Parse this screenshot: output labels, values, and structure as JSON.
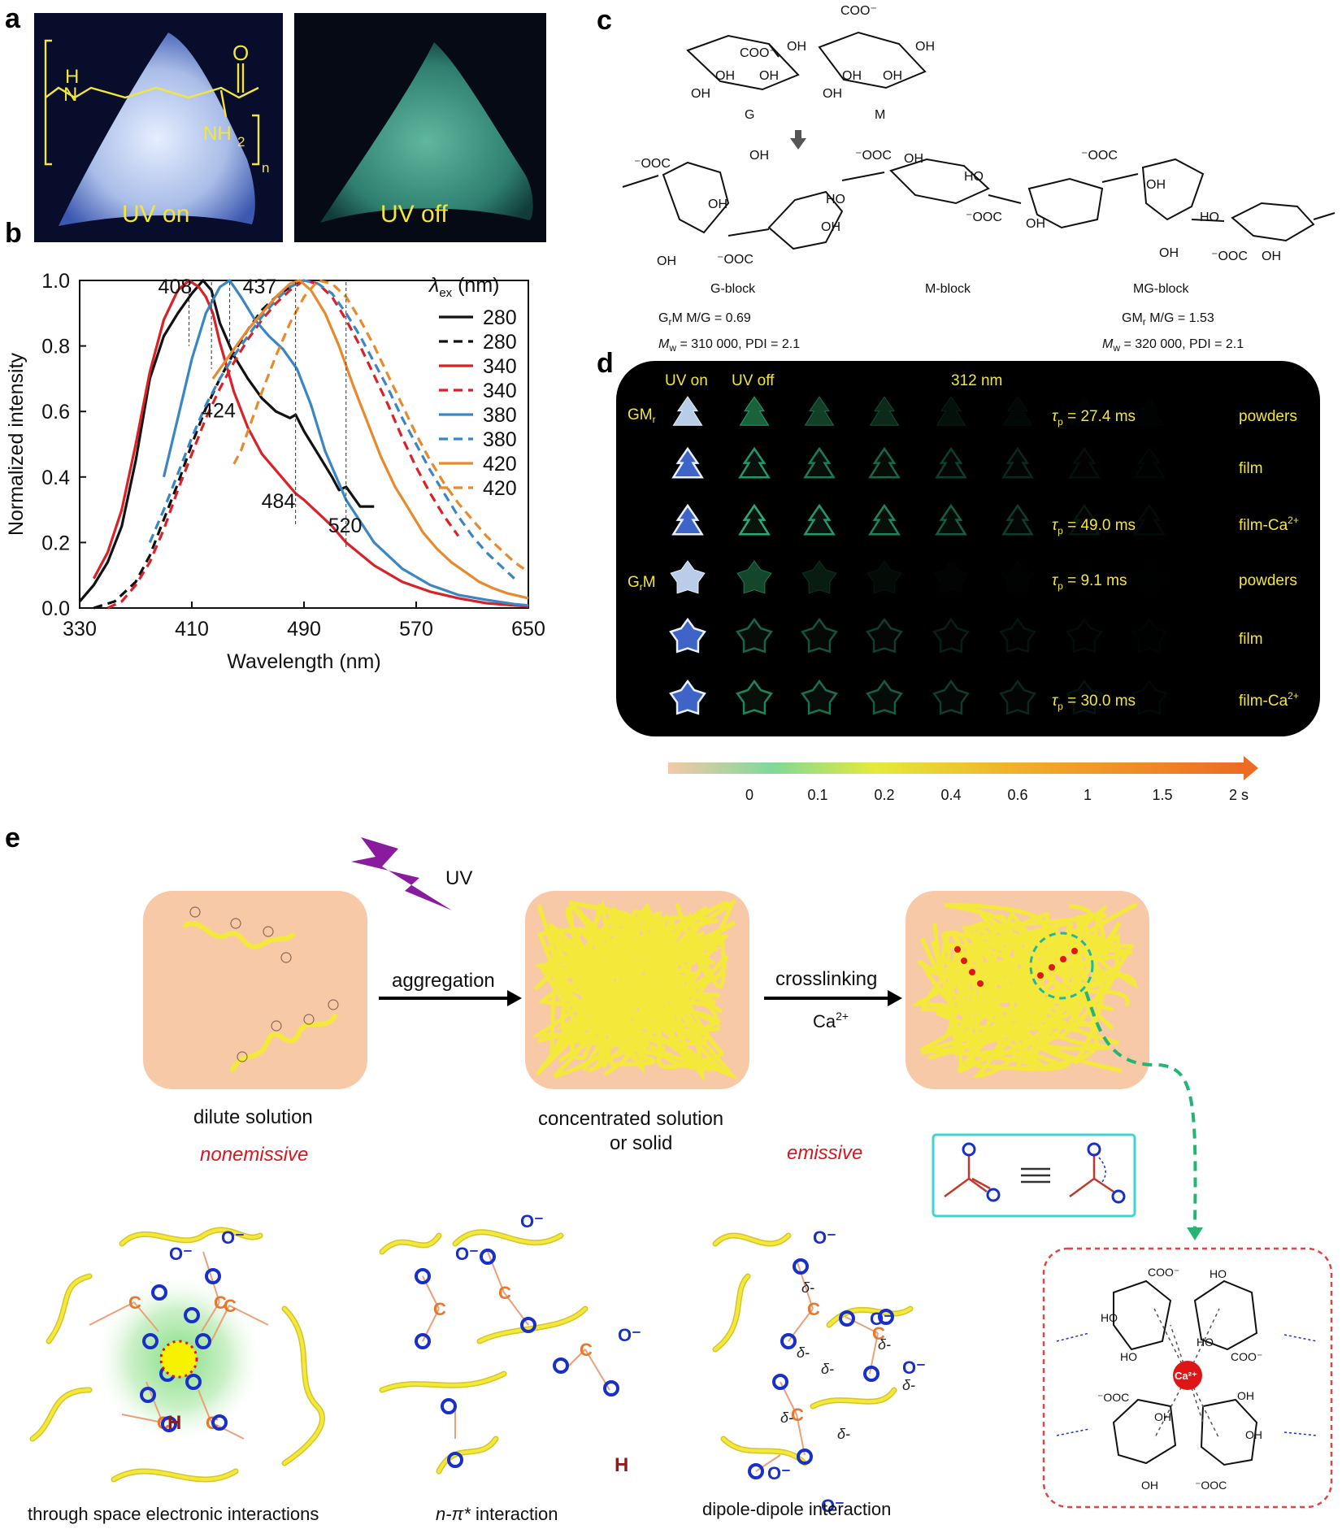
{
  "panels": {
    "a": "a",
    "b": "b",
    "c": "c",
    "d": "d",
    "e": "e"
  },
  "panel_a": {
    "uv_on": "UV on",
    "uv_off": "UV off",
    "struct_h": "H",
    "struct_n": "N",
    "struct_o": "O",
    "struct_nh2": "NH",
    "struct_sub2": "2",
    "struct_n_sub": "n"
  },
  "chart_data": {
    "type": "line",
    "xlabel": "Wavelength (nm)",
    "ylabel": "Normalized intensity",
    "xlim": [
      330,
      650
    ],
    "ylim": [
      0,
      1.0
    ],
    "xticks": [
      330,
      410,
      490,
      570,
      650
    ],
    "yticks": [
      0.0,
      0.2,
      0.4,
      0.6,
      0.8,
      1.0
    ],
    "ytick_labels": [
      "0.0",
      "0.2",
      "0.4",
      "0.6",
      "0.8",
      "1.0"
    ],
    "legend_title": "λex (nm)",
    "legend_title_main": "λ",
    "legend_title_sub": "ex",
    "legend_title_unit": " (nm)",
    "peak_labels": [
      {
        "text": "408",
        "x": 408,
        "y": 1.0
      },
      {
        "text": "424",
        "x": 424,
        "y": 0.83
      },
      {
        "text": "437",
        "x": 437,
        "y": 1.0
      },
      {
        "text": "484",
        "x": 484,
        "y": 0.35
      },
      {
        "text": "520",
        "x": 520,
        "y": 0.28
      }
    ],
    "series": [
      {
        "name": "280",
        "style": "solid",
        "color": "#111111",
        "x": [
          330,
          340,
          350,
          360,
          370,
          380,
          390,
          400,
          410,
          418,
          424,
          430,
          440,
          450,
          460,
          470,
          480,
          484,
          490,
          500,
          510,
          515,
          520,
          525,
          530,
          540
        ],
        "y": [
          0.02,
          0.07,
          0.14,
          0.25,
          0.45,
          0.7,
          0.83,
          0.9,
          0.96,
          1.0,
          0.97,
          0.87,
          0.77,
          0.7,
          0.64,
          0.6,
          0.58,
          0.59,
          0.54,
          0.47,
          0.4,
          0.36,
          0.37,
          0.34,
          0.31,
          0.31
        ]
      },
      {
        "name": "280",
        "style": "dashed",
        "color": "#111111",
        "x": [
          340,
          355,
          370,
          380,
          390,
          400,
          410,
          420,
          430,
          440,
          450,
          460,
          470,
          480,
          490
        ],
        "y": [
          0.0,
          0.02,
          0.08,
          0.16,
          0.27,
          0.38,
          0.5,
          0.61,
          0.7,
          0.78,
          0.85,
          0.91,
          0.95,
          0.98,
          1.0
        ]
      },
      {
        "name": "340",
        "style": "solid",
        "color": "#d92127",
        "x": [
          340,
          350,
          360,
          370,
          380,
          390,
          400,
          408,
          415,
          420,
          425,
          430,
          440,
          450,
          460,
          470,
          480,
          484,
          490,
          500,
          510,
          520,
          540,
          560,
          580,
          600,
          620,
          640,
          650
        ],
        "y": [
          0.09,
          0.17,
          0.3,
          0.5,
          0.72,
          0.88,
          0.97,
          1.0,
          0.98,
          0.95,
          0.9,
          0.81,
          0.66,
          0.55,
          0.47,
          0.42,
          0.37,
          0.35,
          0.33,
          0.29,
          0.25,
          0.2,
          0.13,
          0.08,
          0.05,
          0.03,
          0.015,
          0.008,
          0.005
        ]
      },
      {
        "name": "340",
        "style": "dashed",
        "color": "#d92127",
        "x": [
          350,
          360,
          370,
          380,
          390,
          400,
          410,
          420,
          430,
          440,
          450,
          460,
          470,
          480,
          490,
          500,
          510,
          520,
          530,
          540,
          550,
          560,
          570,
          580,
          590,
          600
        ],
        "y": [
          0.0,
          0.02,
          0.07,
          0.14,
          0.24,
          0.36,
          0.47,
          0.58,
          0.67,
          0.75,
          0.82,
          0.88,
          0.93,
          0.97,
          1.0,
          0.99,
          0.95,
          0.88,
          0.8,
          0.71,
          0.62,
          0.52,
          0.43,
          0.35,
          0.28,
          0.22
        ]
      },
      {
        "name": "380",
        "style": "solid",
        "color": "#3a86c4",
        "x": [
          390,
          400,
          410,
          420,
          430,
          437,
          445,
          455,
          465,
          475,
          485,
          495,
          505,
          520,
          540,
          560,
          580,
          600,
          620,
          640,
          650
        ],
        "y": [
          0.4,
          0.58,
          0.76,
          0.9,
          0.98,
          1.0,
          0.95,
          0.88,
          0.83,
          0.79,
          0.73,
          0.62,
          0.48,
          0.33,
          0.2,
          0.12,
          0.07,
          0.04,
          0.025,
          0.012,
          0.008
        ]
      },
      {
        "name": "380",
        "style": "dashed",
        "color": "#3a86c4",
        "x": [
          380,
          390,
          400,
          410,
          420,
          430,
          440,
          450,
          460,
          470,
          480,
          490,
          500,
          510,
          520,
          530,
          540,
          550,
          560,
          570,
          580,
          590,
          600,
          610,
          620,
          630,
          640
        ],
        "y": [
          0.2,
          0.3,
          0.41,
          0.52,
          0.62,
          0.7,
          0.77,
          0.83,
          0.89,
          0.94,
          0.98,
          1.0,
          0.99,
          0.96,
          0.9,
          0.83,
          0.75,
          0.67,
          0.58,
          0.5,
          0.42,
          0.35,
          0.28,
          0.22,
          0.17,
          0.13,
          0.09
        ]
      },
      {
        "name": "420",
        "style": "solid",
        "color": "#e8892c",
        "x": [
          425,
          430,
          440,
          450,
          460,
          470,
          480,
          487,
          495,
          505,
          515,
          525,
          535,
          545,
          555,
          565,
          575,
          585,
          595,
          605,
          615,
          625,
          635,
          645,
          650
        ],
        "y": [
          0.7,
          0.73,
          0.79,
          0.85,
          0.9,
          0.95,
          0.99,
          1.0,
          0.97,
          0.9,
          0.8,
          0.68,
          0.57,
          0.46,
          0.37,
          0.3,
          0.23,
          0.18,
          0.14,
          0.11,
          0.08,
          0.06,
          0.045,
          0.035,
          0.03
        ]
      },
      {
        "name": "420",
        "style": "dashed",
        "color": "#e8892c",
        "x": [
          440,
          445,
          450,
          460,
          470,
          480,
          490,
          500,
          510,
          520,
          530,
          540,
          550,
          560,
          570,
          580,
          590,
          600,
          610,
          620,
          630,
          640,
          650
        ],
        "y": [
          0.44,
          0.48,
          0.54,
          0.66,
          0.77,
          0.87,
          0.95,
          1.0,
          0.99,
          0.95,
          0.88,
          0.8,
          0.71,
          0.62,
          0.53,
          0.45,
          0.38,
          0.32,
          0.27,
          0.22,
          0.18,
          0.14,
          0.11
        ]
      }
    ]
  },
  "panel_c": {
    "labels": [
      "G",
      "M"
    ],
    "coo": "COO⁻",
    "oh": "OH",
    "g_block": "G-block",
    "m_block": "M-block",
    "mg_block": "MG-block",
    "left_info_1a": "G",
    "left_info_1b": "r",
    "left_info_1c": "M   M/G = 0.69",
    "left_info_2a": "M",
    "left_info_2b": "w",
    "left_info_2c": " = 310 000, PDI = 2.1",
    "right_info_1a": "GM",
    "right_info_1b": "r",
    "right_info_1c": "   M/G = 1.53",
    "right_info_2a": "M",
    "right_info_2b": "w",
    "right_info_2c": " = 320 000, PDI = 2.1"
  },
  "panel_d": {
    "col_uv_on": "UV on",
    "col_uv_off": "UV off",
    "col_312": "312 nm",
    "gm_label_a": "GM",
    "gm_label_b": "r",
    "grm_label_a": "G",
    "grm_label_b": "r",
    "grm_label_c": "M",
    "rows": [
      {
        "tau_a": "τ",
        "tau_b": "p",
        "tau_c": " = 27.4 ms",
        "form": "powders",
        "ca": ""
      },
      {
        "tau_a": "",
        "tau_b": "",
        "tau_c": "",
        "form": "film",
        "ca": ""
      },
      {
        "tau_a": "τ",
        "tau_b": "p",
        "tau_c": " = 49.0 ms",
        "form": "film-Ca",
        "ca": "2+"
      },
      {
        "tau_a": "τ",
        "tau_b": "p",
        "tau_c": " = 9.1 ms",
        "form": "powders",
        "ca": ""
      },
      {
        "tau_a": "",
        "tau_b": "",
        "tau_c": "",
        "form": "film",
        "ca": ""
      },
      {
        "tau_a": "τ",
        "tau_b": "p",
        "tau_c": " = 30.0 ms",
        "form": "film-Ca",
        "ca": "2+"
      }
    ],
    "time_ticks": [
      "0",
      "0.1",
      "0.2",
      "0.4",
      "0.6",
      "1",
      "1.5",
      "2 s"
    ],
    "colors": {
      "bg": "#000000",
      "text": "#f2e63a",
      "glow_on": "#c8dcff",
      "glow_off": "#2fae6b"
    }
  },
  "panel_e": {
    "uv": "UV",
    "aggregation": "aggregation",
    "crosslinking": "crosslinking",
    "ca_a": "Ca",
    "ca_b": "2+",
    "dilute": "dilute solution",
    "nonemissive": "nonemissive",
    "concentrated_1": "concentrated solution",
    "concentrated_2": "or solid",
    "emissive": "emissive",
    "through_space": "through space electronic interactions",
    "npi_a": "n-π*",
    "npi_b": " interaction",
    "dipole": "dipole-dipole interaction",
    "ca_center": "Ca²⁺",
    "o_minus": "O",
    "colors": {
      "box": "#f8c9a6",
      "chain": "#f4e93a",
      "accent_red": "#d9171e",
      "cyan": "#3fd3d3",
      "green_dash": "#22b573",
      "o_blue": "#1930c8",
      "bond_orange": "#e8782c"
    }
  }
}
